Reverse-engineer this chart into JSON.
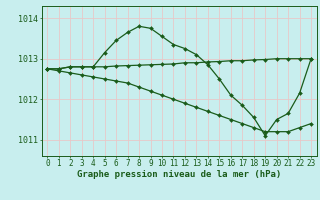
{
  "title": "Graphe pression niveau de la mer (hPa)",
  "bg_color": "#c8eeee",
  "grid_color": "#e8c8c8",
  "line_color": "#1a5c1a",
  "ylim": [
    1010.6,
    1014.3
  ],
  "yticks": [
    1011,
    1012,
    1013,
    1014
  ],
  "xlim": [
    -0.5,
    23.5
  ],
  "xticks": [
    0,
    1,
    2,
    3,
    4,
    5,
    6,
    7,
    8,
    9,
    10,
    11,
    12,
    13,
    14,
    15,
    16,
    17,
    18,
    19,
    20,
    21,
    22,
    23
  ],
  "series1": {
    "x": [
      0,
      1,
      2,
      3,
      4,
      5,
      6,
      7,
      8,
      9,
      10,
      11,
      12,
      13,
      14,
      15,
      16,
      17,
      18,
      19,
      20,
      21,
      22,
      23
    ],
    "y": [
      1012.75,
      1012.75,
      1012.8,
      1012.8,
      1012.8,
      1013.15,
      1013.45,
      1013.65,
      1013.8,
      1013.75,
      1013.55,
      1013.35,
      1013.25,
      1013.1,
      1012.85,
      1012.5,
      1012.1,
      1011.85,
      1011.55,
      1011.1,
      1011.5,
      1011.65,
      1012.15,
      1013.0
    ]
  },
  "series2": {
    "x": [
      0,
      1,
      2,
      3,
      4,
      5,
      6,
      7,
      8,
      9,
      10,
      11,
      12,
      13,
      14,
      15,
      16,
      17,
      18,
      19,
      20,
      21,
      22,
      23
    ],
    "y": [
      1012.75,
      1012.75,
      1012.8,
      1012.8,
      1012.8,
      1012.8,
      1012.82,
      1012.83,
      1012.84,
      1012.85,
      1012.86,
      1012.87,
      1012.9,
      1012.9,
      1012.92,
      1012.93,
      1012.95,
      1012.95,
      1012.97,
      1012.98,
      1013.0,
      1013.0,
      1013.0,
      1013.0
    ]
  },
  "series3": {
    "x": [
      0,
      1,
      2,
      3,
      4,
      5,
      6,
      7,
      8,
      9,
      10,
      11,
      12,
      13,
      14,
      15,
      16,
      17,
      18,
      19,
      20,
      21,
      22,
      23
    ],
    "y": [
      1012.75,
      1012.7,
      1012.65,
      1012.6,
      1012.55,
      1012.5,
      1012.45,
      1012.4,
      1012.3,
      1012.2,
      1012.1,
      1012.0,
      1011.9,
      1011.8,
      1011.7,
      1011.6,
      1011.5,
      1011.4,
      1011.3,
      1011.2,
      1011.2,
      1011.2,
      1011.3,
      1011.4
    ]
  },
  "xlabel_fontsize": 5.5,
  "ylabel_fontsize": 6,
  "title_fontsize": 6.5,
  "marker": "D",
  "markersize": 2.0,
  "linewidth": 0.9
}
